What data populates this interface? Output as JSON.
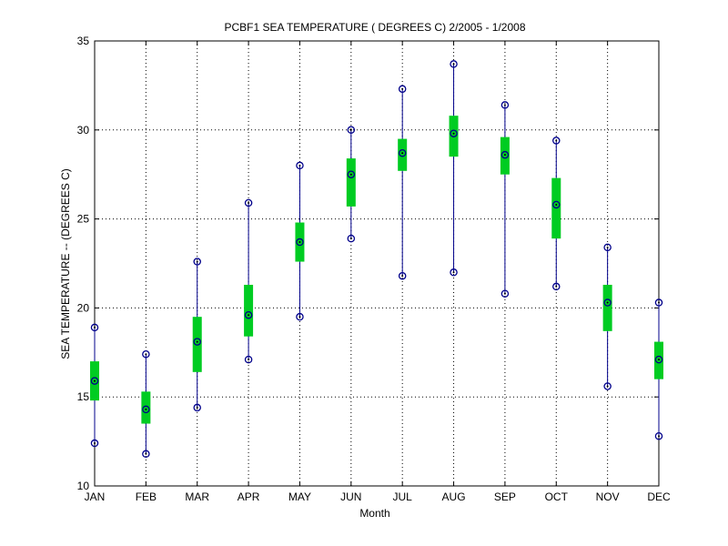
{
  "chart_data": {
    "type": "box",
    "title": "PCBF1  SEA TEMPERATURE ( DEGREES C) 2/2005 - 1/2008",
    "xlabel": "Month",
    "ylabel": "SEA TEMPERATURE -- (DEGREES C)",
    "ylim": [
      10,
      35
    ],
    "yticks": [
      10,
      15,
      20,
      25,
      30,
      35
    ],
    "grid": true,
    "categories": [
      "JAN",
      "FEB",
      "MAR",
      "APR",
      "MAY",
      "JUN",
      "JUL",
      "AUG",
      "SEP",
      "OCT",
      "NOV",
      "DEC"
    ],
    "series": [
      {
        "min": [
          12.4,
          11.8,
          14.4,
          17.1,
          19.5,
          23.9,
          21.8,
          22.0,
          20.8,
          21.2,
          15.6,
          12.8
        ],
        "q1": [
          14.8,
          13.5,
          16.4,
          18.4,
          22.6,
          25.7,
          27.7,
          28.5,
          27.5,
          23.9,
          18.7,
          16.0
        ],
        "median": [
          15.9,
          14.3,
          18.1,
          19.6,
          23.7,
          27.5,
          28.7,
          29.8,
          28.6,
          25.8,
          20.3,
          17.1
        ],
        "q3": [
          17.0,
          15.3,
          19.5,
          21.3,
          24.8,
          28.4,
          29.5,
          30.8,
          29.6,
          27.3,
          21.3,
          18.1
        ],
        "max": [
          18.9,
          17.4,
          22.6,
          25.9,
          28.0,
          30.0,
          32.3,
          33.7,
          31.4,
          29.4,
          23.4,
          20.3
        ]
      }
    ],
    "colors": {
      "whisker": "#00008b",
      "box": "#00cc22",
      "marker": "#000000",
      "grid": "#000000"
    }
  }
}
